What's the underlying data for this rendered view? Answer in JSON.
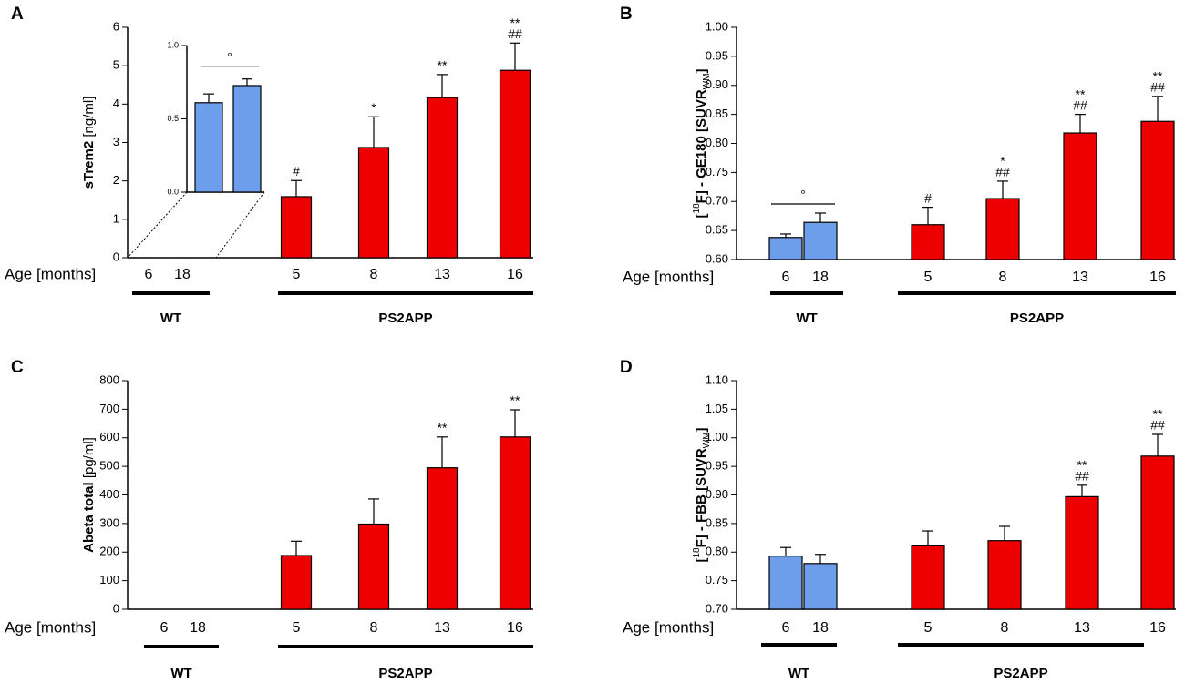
{
  "chart_data": [
    {
      "type": "bar",
      "panel": "A",
      "y_label": [
        {
          "text": "sTrem2 ",
          "style": "bold"
        },
        {
          "text": "[ng/ml]",
          "style": "normal"
        }
      ],
      "x_label": "Age [months]",
      "ylim": [
        0,
        6
      ],
      "yticks": [
        0,
        1,
        2,
        3,
        4,
        5,
        6
      ],
      "groups": [
        {
          "label": "WT",
          "color": "#6d9eeb",
          "categories": [
            "6",
            "18"
          ],
          "values": [
            null,
            null
          ],
          "errors": [
            null,
            null
          ]
        },
        {
          "label": "PS2APP",
          "color": "#ee0000",
          "categories": [
            "5",
            "8",
            "13",
            "16"
          ],
          "values": [
            1.59,
            2.87,
            4.17,
            4.88
          ],
          "errors": [
            0.42,
            0.8,
            0.6,
            0.71
          ],
          "annotations": [
            [
              "#"
            ],
            [
              "*"
            ],
            [
              "**"
            ],
            [
              "**",
              "##"
            ]
          ]
        }
      ],
      "inset": {
        "ylim": [
          0,
          1
        ],
        "yticks": [
          {
            "value": 0,
            "label": "0.0"
          },
          {
            "value": 0.5,
            "label": "0.5"
          },
          {
            "value": 1,
            "label": "1.0"
          }
        ],
        "values": [
          0.61,
          0.727
        ],
        "errors": [
          0.06,
          0.045
        ],
        "bracket": "°",
        "color": "#6d9eeb"
      }
    },
    {
      "type": "bar",
      "panel": "B",
      "y_label": [
        {
          "text": "[",
          "style": "bold"
        },
        {
          "text": "18",
          "style": "sup"
        },
        {
          "text": "F] - GE180 [SUVR",
          "style": "bold"
        },
        {
          "text": "WM",
          "style": "sub"
        },
        {
          "text": "]",
          "style": "bold"
        }
      ],
      "x_label": "Age [months]",
      "ylim": [
        0.6,
        1.0
      ],
      "yticks": [
        {
          "value": 0.6,
          "label": "0.60"
        },
        {
          "value": 0.65,
          "label": "0.65"
        },
        {
          "value": 0.7,
          "label": "0.70"
        },
        {
          "value": 0.75,
          "label": "0.75"
        },
        {
          "value": 0.8,
          "label": "0.80"
        },
        {
          "value": 0.85,
          "label": "0.85"
        },
        {
          "value": 0.9,
          "label": "0.90"
        },
        {
          "value": 0.95,
          "label": "0.95"
        },
        {
          "value": 1.0,
          "label": "1.00"
        }
      ],
      "groups": [
        {
          "label": "WT",
          "color": "#6d9eeb",
          "categories": [
            "6",
            "18"
          ],
          "values": [
            0.638,
            0.664
          ],
          "errors": [
            0.006,
            0.016
          ],
          "bracket": "°"
        },
        {
          "label": "PS2APP",
          "color": "#ee0000",
          "categories": [
            "5",
            "8",
            "13",
            "16"
          ],
          "values": [
            0.66,
            0.705,
            0.818,
            0.838
          ],
          "errors": [
            0.03,
            0.03,
            0.032,
            0.043
          ],
          "annotations": [
            [
              "#"
            ],
            [
              "*",
              "##"
            ],
            [
              "**",
              "##"
            ],
            [
              "**",
              "##"
            ]
          ]
        }
      ]
    },
    {
      "type": "bar",
      "panel": "C",
      "y_label": [
        {
          "text": "Abeta total ",
          "style": "bold"
        },
        {
          "text": "[pg/ml]",
          "style": "normal"
        }
      ],
      "x_label": "Age [months]",
      "ylim": [
        0,
        800
      ],
      "yticks": [
        0,
        100,
        200,
        300,
        400,
        500,
        600,
        700,
        800
      ],
      "groups": [
        {
          "label": "WT",
          "color": "#6d9eeb",
          "categories": [
            "6",
            "18"
          ],
          "values": [
            null,
            null
          ],
          "errors": [
            null,
            null
          ]
        },
        {
          "label": "PS2APP",
          "color": "#ee0000",
          "categories": [
            "5",
            "8",
            "13",
            "16"
          ],
          "values": [
            188,
            298,
            495,
            603
          ],
          "errors": [
            50,
            88,
            108,
            95
          ],
          "annotations": [
            [],
            [],
            [
              "**"
            ],
            [
              "**"
            ]
          ]
        }
      ]
    },
    {
      "type": "bar",
      "panel": "D",
      "y_label": [
        {
          "text": "[",
          "style": "bold"
        },
        {
          "text": "18",
          "style": "sup"
        },
        {
          "text": "F] - FBB [SUVR",
          "style": "bold"
        },
        {
          "text": "WM",
          "style": "sub"
        },
        {
          "text": "]",
          "style": "bold"
        }
      ],
      "x_label": "Age [months]",
      "ylim": [
        0.7,
        1.1
      ],
      "yticks": [
        {
          "value": 0.7,
          "label": "0.70"
        },
        {
          "value": 0.75,
          "label": "0.75"
        },
        {
          "value": 0.8,
          "label": "0.80"
        },
        {
          "value": 0.85,
          "label": "0.85"
        },
        {
          "value": 0.9,
          "label": "0.90"
        },
        {
          "value": 0.95,
          "label": "0.95"
        },
        {
          "value": 1.0,
          "label": "1.00"
        },
        {
          "value": 1.05,
          "label": "1.05"
        },
        {
          "value": 1.1,
          "label": "1.10"
        }
      ],
      "groups": [
        {
          "label": "WT",
          "color": "#6d9eeb",
          "categories": [
            "6",
            "18"
          ],
          "values": [
            0.793,
            0.78
          ],
          "errors": [
            0.015,
            0.016
          ]
        },
        {
          "label": "PS2APP",
          "color": "#ee0000",
          "categories": [
            "5",
            "8",
            "13",
            "16"
          ],
          "values": [
            0.811,
            0.82,
            0.897,
            0.968
          ],
          "errors": [
            0.026,
            0.025,
            0.02,
            0.038
          ],
          "annotations": [
            [],
            [],
            [
              "**",
              "##"
            ],
            [
              "**",
              "##"
            ]
          ]
        }
      ]
    }
  ]
}
